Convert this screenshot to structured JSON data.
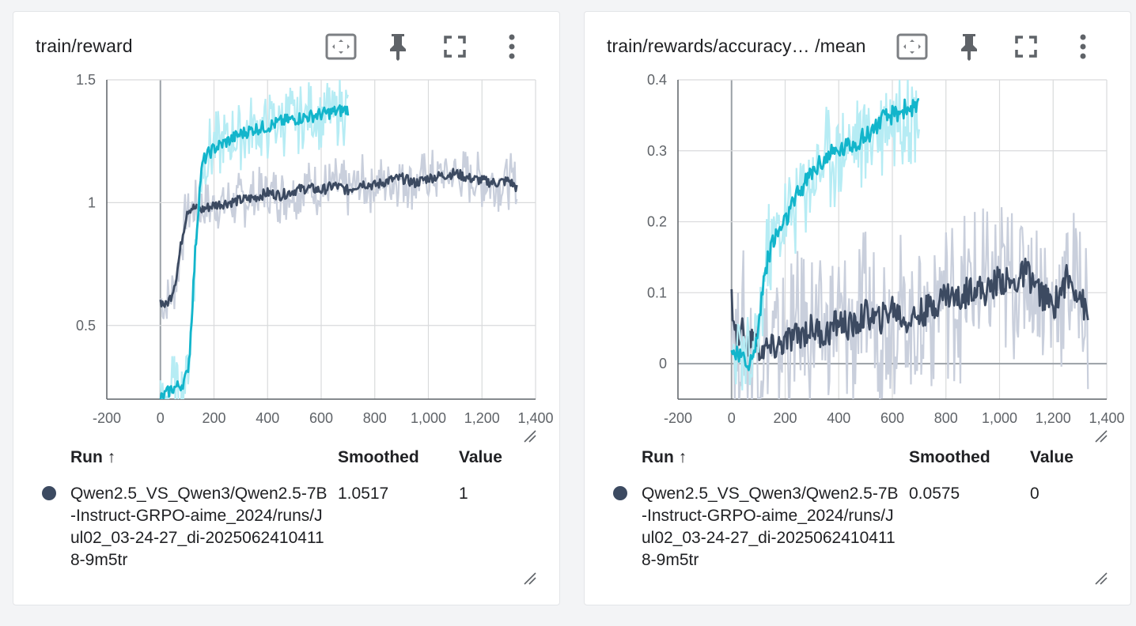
{
  "colors": {
    "accent_cyan": "#12b5cb",
    "accent_cyan_raw": "#b6ecf4",
    "dark_run": "#3c4a61",
    "dark_run_raw": "#c9cfdc",
    "grid": "#d9dadc",
    "axis_zero": "#9aa0a6"
  },
  "icons": [
    "fit-domain-icon",
    "pin-icon",
    "fullscreen-icon",
    "more-vert-icon",
    "resize-handle-icon"
  ],
  "cards": [
    {
      "title": "train/reward",
      "table": {
        "col_run": "Run ↑",
        "col_smoothed": "Smoothed",
        "col_value": "Value",
        "run_name": "Qwen2.5_VS_Qwen3/Qwen2.5-7B-Instruct-GRPO-aime_2024/runs/Jul02_03-24-27_di-20250624104118-9m5tr",
        "smoothed": "1.0517",
        "value": "1"
      },
      "chart_data": {
        "type": "line",
        "xlim": [
          -200,
          1400
        ],
        "ylim": [
          0.2,
          1.5
        ],
        "x_ticks": [
          -200,
          0,
          200,
          400,
          600,
          800,
          1000,
          1200,
          1400
        ],
        "x_tick_labels": [
          "-200",
          "0",
          "200",
          "400",
          "600",
          "800",
          "1,000",
          "1,200",
          "1,400"
        ],
        "y_ticks": [
          0.5,
          1,
          1.5
        ],
        "y_tick_labels": [
          "0.5",
          "1",
          "1.5"
        ],
        "grid": true,
        "series": [
          {
            "role": "cyan",
            "x": [
              0,
              20,
              40,
              60,
              80,
              100,
              110,
              120,
              130,
              140,
              150,
              160,
              180,
              200,
              250,
              300,
              350,
              400,
              450,
              500,
              550,
              600,
              650,
              700
            ],
            "smoothed": [
              0.2,
              0.22,
              0.24,
              0.25,
              0.26,
              0.3,
              0.4,
              0.6,
              0.8,
              0.95,
              1.1,
              1.17,
              1.2,
              1.22,
              1.25,
              1.28,
              1.3,
              1.31,
              1.33,
              1.34,
              1.35,
              1.36,
              1.37,
              1.38
            ],
            "raw_band": 0.15
          },
          {
            "role": "dark",
            "x": [
              0,
              20,
              40,
              60,
              80,
              100,
              120,
              150,
              200,
              250,
              300,
              350,
              400,
              450,
              500,
              550,
              600,
              650,
              700,
              750,
              800,
              850,
              900,
              950,
              1000,
              1050,
              1100,
              1150,
              1200,
              1250,
              1300,
              1330
            ],
            "smoothed": [
              0.6,
              0.58,
              0.62,
              0.7,
              0.85,
              0.97,
              0.98,
              0.97,
              0.99,
              1.0,
              1.01,
              1.02,
              1.04,
              1.03,
              1.05,
              1.06,
              1.05,
              1.07,
              1.05,
              1.08,
              1.07,
              1.09,
              1.1,
              1.08,
              1.1,
              1.11,
              1.12,
              1.1,
              1.09,
              1.08,
              1.09,
              1.06
            ],
            "raw_band": 0.12
          }
        ]
      }
    },
    {
      "title": "train/rewards/accuracy… /mean",
      "table": {
        "col_run": "Run ↑",
        "col_smoothed": "Smoothed",
        "col_value": "Value",
        "run_name": "Qwen2.5_VS_Qwen3/Qwen2.5-7B-Instruct-GRPO-aime_2024/runs/Jul02_03-24-27_di-20250624104118-9m5tr",
        "smoothed": "0.0575",
        "value": "0"
      },
      "chart_data": {
        "type": "line",
        "xlim": [
          -200,
          1400
        ],
        "ylim": [
          -0.05,
          0.4
        ],
        "x_ticks": [
          -200,
          0,
          200,
          400,
          600,
          800,
          1000,
          1200,
          1400
        ],
        "x_tick_labels": [
          "-200",
          "0",
          "200",
          "400",
          "600",
          "800",
          "1,000",
          "1,200",
          "1,400"
        ],
        "y_ticks": [
          0,
          0.1,
          0.2,
          0.3,
          0.4
        ],
        "y_tick_labels": [
          "0",
          "0.1",
          "0.2",
          "0.3",
          "0.4"
        ],
        "grid": true,
        "series": [
          {
            "role": "cyan",
            "x": [
              0,
              20,
              40,
              60,
              80,
              100,
              120,
              150,
              200,
              250,
              300,
              350,
              400,
              450,
              500,
              550,
              600,
              650,
              700
            ],
            "smoothed": [
              0.02,
              0.01,
              0.005,
              0.003,
              0.005,
              0.05,
              0.12,
              0.17,
              0.2,
              0.24,
              0.27,
              0.29,
              0.3,
              0.31,
              0.32,
              0.34,
              0.35,
              0.36,
              0.36
            ],
            "raw_band": 0.08
          },
          {
            "role": "dark",
            "x": [
              0,
              20,
              40,
              60,
              80,
              100,
              150,
              200,
              250,
              300,
              350,
              400,
              450,
              500,
              550,
              600,
              650,
              700,
              750,
              800,
              850,
              900,
              950,
              1000,
              1050,
              1100,
              1150,
              1200,
              1250,
              1300,
              1330
            ],
            "smoothed": [
              0.09,
              0.03,
              0.05,
              0.02,
              0.04,
              0.02,
              0.02,
              0.03,
              0.04,
              0.05,
              0.04,
              0.06,
              0.05,
              0.07,
              0.06,
              0.08,
              0.06,
              0.07,
              0.08,
              0.1,
              0.09,
              0.11,
              0.1,
              0.12,
              0.11,
              0.13,
              0.1,
              0.08,
              0.12,
              0.1,
              0.06
            ],
            "raw_band": 0.12
          }
        ]
      }
    }
  ]
}
